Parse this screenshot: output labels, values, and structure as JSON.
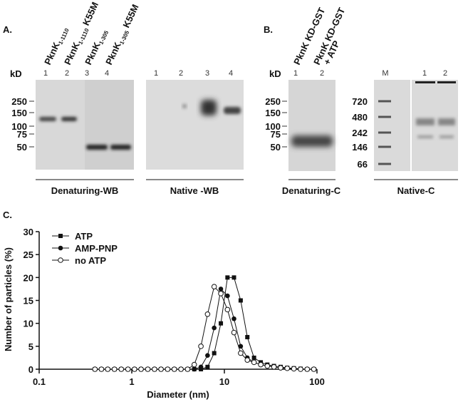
{
  "panel_a": {
    "label": "A.",
    "unit": "kD",
    "lane_labels": [
      {
        "name": "PknK",
        "sub": "1-1110"
      },
      {
        "name": "PknK",
        "sub": "1-1110",
        "suffix": " K55M"
      },
      {
        "name": "PknK",
        "sub": "1-305"
      },
      {
        "name": "PknK",
        "sub": "1-305",
        "suffix": " K55M"
      }
    ],
    "lanes_left": [
      "1",
      "2",
      "3",
      "4"
    ],
    "lanes_right": [
      "1",
      "2",
      "3",
      "4"
    ],
    "markers": [
      250,
      150,
      100,
      75,
      50
    ],
    "captions": [
      "Denaturing-WB",
      "Native -WB"
    ]
  },
  "panel_b": {
    "label": "B.",
    "unit": "kD",
    "lane_labels": [
      {
        "text": "PknK KD-GST"
      },
      {
        "text": "PknK KD-GST",
        "line2": "+ ATP"
      }
    ],
    "lanes_left": [
      "1",
      "2"
    ],
    "markers_left": [
      250,
      150,
      100,
      75,
      50
    ],
    "lanes_right": [
      "M",
      "1",
      "2"
    ],
    "markers_right": [
      720,
      480,
      242,
      146,
      66
    ],
    "captions": [
      "Denaturing-C",
      "Native-C"
    ]
  },
  "chart_data": {
    "type": "line",
    "label": "C.",
    "x_label": "Diameter (nm)",
    "y_label": "Number of particles (%)",
    "xscale": "log",
    "xlim": [
      0.1,
      100
    ],
    "xticks": [
      0.1,
      1,
      10,
      100
    ],
    "ylim": [
      0,
      30
    ],
    "yticks": [
      0,
      5,
      10,
      15,
      20,
      25,
      30
    ],
    "legend": "upper left",
    "x": [
      0.4,
      0.47,
      0.55,
      0.65,
      0.77,
      0.91,
      1.07,
      1.26,
      1.49,
      1.76,
      2.07,
      2.44,
      2.88,
      3.4,
      4.01,
      4.73,
      5.58,
      6.58,
      7.76,
      9.16,
      10.8,
      12.7,
      15.0,
      17.7,
      20.9,
      24.7,
      29.1,
      34.3,
      40.5,
      47.7,
      56.3,
      66.5,
      78.4,
      92.5
    ],
    "series": [
      {
        "name": "ATP",
        "color": "#111111",
        "marker": "square",
        "values": [
          0,
          0,
          0,
          0,
          0,
          0,
          0,
          0,
          0,
          0,
          0,
          0,
          0,
          0,
          0,
          0,
          0,
          0.5,
          3.5,
          10,
          20,
          20,
          15,
          7,
          2.5,
          1.5,
          1,
          0.7,
          0.5,
          0.3,
          0.2,
          0.1,
          0,
          0
        ]
      },
      {
        "name": "AMP-PNP",
        "color": "#111111",
        "marker": "circle",
        "values": [
          0,
          0,
          0,
          0,
          0,
          0,
          0,
          0,
          0,
          0,
          0,
          0,
          0,
          0,
          0,
          0,
          0.5,
          3,
          9,
          17.5,
          16,
          11,
          5,
          2.5,
          1.5,
          1,
          0.8,
          0.5,
          0.3,
          0.2,
          0.1,
          0,
          0,
          0
        ]
      },
      {
        "name": "no ATP",
        "color": "#111111",
        "marker": "open-circle",
        "values": [
          0,
          0,
          0,
          0,
          0,
          0,
          0,
          0,
          0,
          0,
          0,
          0,
          0,
          0,
          0,
          1,
          5,
          12,
          18,
          16.5,
          13,
          8,
          3.5,
          2,
          1.5,
          1,
          0.7,
          0.5,
          0.3,
          0.2,
          0.1,
          0,
          0,
          0
        ]
      }
    ]
  }
}
